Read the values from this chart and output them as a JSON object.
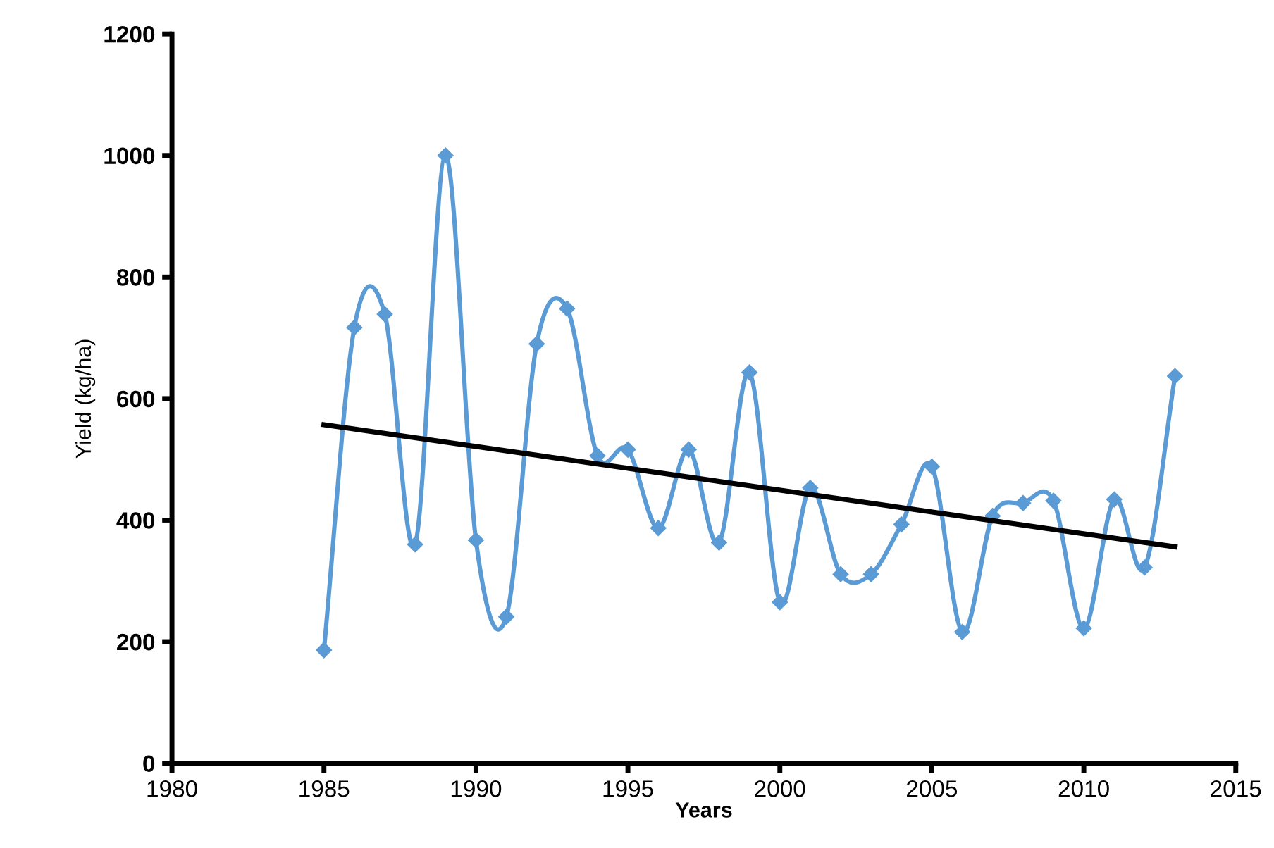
{
  "chart_data": {
    "type": "line",
    "xlabel": "Years",
    "ylabel": "Yield (kg/ha)",
    "x": [
      1985,
      1986,
      1987,
      1988,
      1989,
      1990,
      1991,
      1992,
      1993,
      1994,
      1995,
      1996,
      1997,
      1998,
      1999,
      2000,
      2001,
      2002,
      2003,
      2004,
      2005,
      2006,
      2007,
      2008,
      2009,
      2010,
      2011,
      2012,
      2013
    ],
    "series": [
      {
        "color": "#5b9bd5",
        "marker": "diamond",
        "values": [
          186,
          717,
          739,
          360,
          1000,
          367,
          241,
          690,
          748,
          506,
          516,
          387,
          516,
          363,
          643,
          265,
          453,
          311,
          311,
          393,
          488,
          216,
          407,
          428,
          432,
          222,
          434,
          322,
          637
        ]
      },
      {
        "type": "line",
        "color": "#000000",
        "marker": "none",
        "x": [
          1985,
          2013
        ],
        "values": [
          557,
          356
        ]
      }
    ],
    "xlim": [
      1980,
      2015
    ],
    "xticks": [
      1980,
      1985,
      1990,
      1995,
      2000,
      2005,
      2010,
      2015
    ],
    "ylim": [
      0,
      1200
    ],
    "yticks": [
      0,
      200,
      400,
      600,
      800,
      1000,
      1200
    ],
    "grid": false,
    "legend": false
  }
}
